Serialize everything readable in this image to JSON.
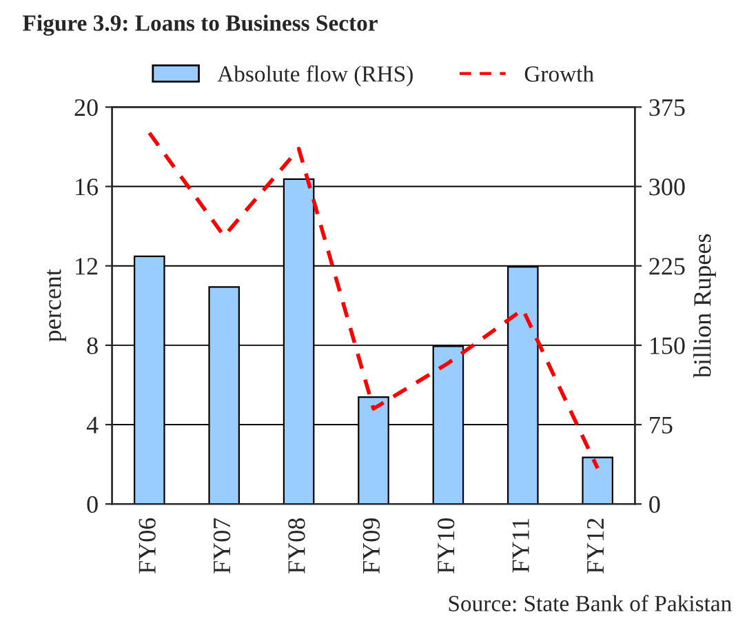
{
  "chart_data": {
    "type": "bar",
    "title": "Figure 3.9: Loans to Business Sector",
    "ylabel": "percent",
    "y2label": "billion Rupees",
    "categories": [
      "FY06",
      "FY07",
      "FY08",
      "FY09",
      "FY10",
      "FY11",
      "FY12"
    ],
    "series": [
      {
        "name": "Absolute flow (RHS)",
        "axis": "y2",
        "color": "#99ccff",
        "values": [
          234,
          205,
          307,
          101,
          149,
          224,
          44
        ]
      },
      {
        "name": "Growth",
        "type": "line",
        "color": "#ff0000",
        "line_style": "dashed",
        "values": [
          18.7,
          13.5,
          17.9,
          4.8,
          7.1,
          9.8,
          1.8
        ]
      }
    ],
    "ylim": [
      0,
      20
    ],
    "yticks": [
      0,
      4,
      8,
      12,
      16,
      20
    ],
    "y2lim": [
      0,
      375
    ],
    "y2ticks": [
      0,
      75,
      150,
      225,
      300,
      375
    ],
    "grid": "y",
    "legend": "top",
    "annotations": [
      "Source: State Bank of Pakistan"
    ]
  }
}
